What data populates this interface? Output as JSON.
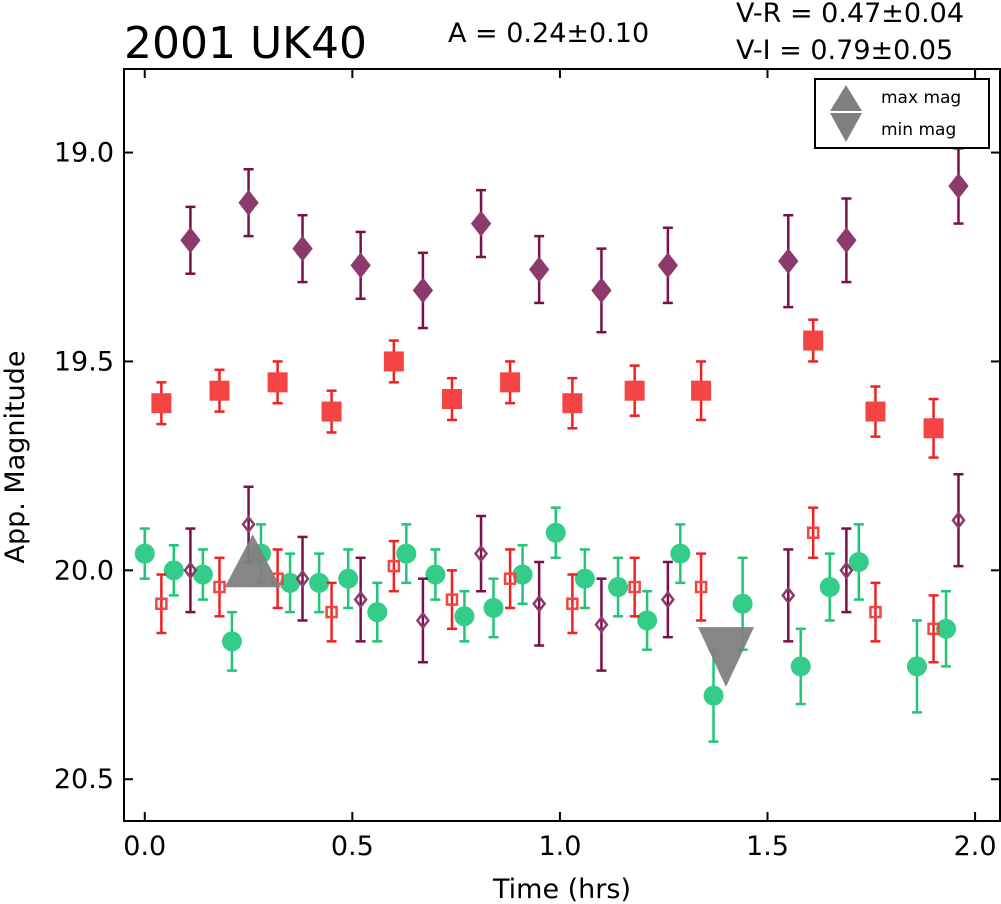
{
  "chart_data": {
    "type": "scatter",
    "title": "2001 UK40",
    "annotations": {
      "amplitude": "A  = 0.24±0.10",
      "v_r": "V-R = 0.47±0.04",
      "v_i": "V-I  = 0.79±0.05"
    },
    "xlabel": "Time (hrs)",
    "ylabel": "App. Magnitude",
    "xlim": [
      -0.05,
      2.06
    ],
    "ylim": [
      20.6,
      18.8
    ],
    "y_inverted": true,
    "xticks": [
      0.0,
      0.5,
      1.0,
      1.5,
      2.0
    ],
    "xtick_labels": [
      "0.0",
      "0.5",
      "1.0",
      "1.5",
      "2.0"
    ],
    "yticks": [
      19.0,
      19.5,
      20.0,
      20.5
    ],
    "ytick_labels": [
      "19.0",
      "19.5",
      "20.0",
      "20.5"
    ],
    "grid": false,
    "legend_position": "top-right",
    "legend": [
      {
        "label": "max mag",
        "marker": "triangle-up",
        "color": "#808080"
      },
      {
        "label": "min mag",
        "marker": "triangle-down",
        "color": "#808080"
      }
    ],
    "series": [
      {
        "marker": "diamond",
        "filled": true,
        "color": "#8b3a6b",
        "errcolor": "#7a1048",
        "points": [
          [
            0.11,
            19.21,
            0.08
          ],
          [
            0.25,
            19.12,
            0.08
          ],
          [
            0.38,
            19.23,
            0.08
          ],
          [
            0.52,
            19.27,
            0.08
          ],
          [
            0.67,
            19.33,
            0.09
          ],
          [
            0.81,
            19.17,
            0.08
          ],
          [
            0.95,
            19.28,
            0.08
          ],
          [
            1.1,
            19.33,
            0.1
          ],
          [
            1.26,
            19.27,
            0.09
          ],
          [
            1.55,
            19.26,
            0.11
          ],
          [
            1.69,
            19.21,
            0.1
          ],
          [
            1.96,
            19.08,
            0.09
          ]
        ]
      },
      {
        "marker": "square",
        "filled": true,
        "color": "#f44444",
        "errcolor": "#ee2222",
        "points": [
          [
            0.04,
            19.6,
            0.05
          ],
          [
            0.18,
            19.57,
            0.05
          ],
          [
            0.32,
            19.55,
            0.05
          ],
          [
            0.45,
            19.62,
            0.05
          ],
          [
            0.6,
            19.5,
            0.05
          ],
          [
            0.74,
            19.59,
            0.05
          ],
          [
            0.88,
            19.55,
            0.05
          ],
          [
            1.03,
            19.6,
            0.06
          ],
          [
            1.18,
            19.57,
            0.06
          ],
          [
            1.34,
            19.57,
            0.07
          ],
          [
            1.61,
            19.45,
            0.05
          ],
          [
            1.76,
            19.62,
            0.06
          ],
          [
            1.9,
            19.66,
            0.07
          ]
        ]
      },
      {
        "marker": "circle",
        "filled": true,
        "color": "#33cc88",
        "errcolor": "#22c577",
        "points": [
          [
            0.0,
            19.96,
            0.06
          ],
          [
            0.07,
            20.0,
            0.06
          ],
          [
            0.14,
            20.01,
            0.06
          ],
          [
            0.21,
            20.17,
            0.07
          ],
          [
            0.28,
            19.96,
            0.07
          ],
          [
            0.35,
            20.03,
            0.07
          ],
          [
            0.42,
            20.03,
            0.07
          ],
          [
            0.49,
            20.02,
            0.07
          ],
          [
            0.56,
            20.1,
            0.07
          ],
          [
            0.63,
            19.96,
            0.07
          ],
          [
            0.7,
            20.01,
            0.06
          ],
          [
            0.77,
            20.11,
            0.06
          ],
          [
            0.84,
            20.09,
            0.07
          ],
          [
            0.91,
            20.01,
            0.07
          ],
          [
            0.99,
            19.91,
            0.06
          ],
          [
            1.06,
            20.02,
            0.07
          ],
          [
            1.14,
            20.04,
            0.07
          ],
          [
            1.21,
            20.12,
            0.07
          ],
          [
            1.29,
            19.96,
            0.07
          ],
          [
            1.37,
            20.3,
            0.11
          ],
          [
            1.44,
            20.08,
            0.11
          ],
          [
            1.58,
            20.23,
            0.09
          ],
          [
            1.65,
            20.04,
            0.08
          ],
          [
            1.72,
            19.98,
            0.09
          ],
          [
            1.86,
            20.23,
            0.11
          ],
          [
            1.93,
            20.14,
            0.09
          ]
        ]
      },
      {
        "marker": "diamond",
        "filled": false,
        "color": "#8b3a6b",
        "errcolor": "#7a1048",
        "points": [
          [
            0.11,
            20.0,
            0.1
          ],
          [
            0.25,
            19.89,
            0.09
          ],
          [
            0.38,
            20.02,
            0.1
          ],
          [
            0.52,
            20.07,
            0.1
          ],
          [
            0.67,
            20.12,
            0.1
          ],
          [
            0.81,
            19.96,
            0.09
          ],
          [
            0.95,
            20.08,
            0.1
          ],
          [
            1.1,
            20.13,
            0.11
          ],
          [
            1.26,
            20.07,
            0.09
          ],
          [
            1.55,
            20.06,
            0.11
          ],
          [
            1.69,
            20.0,
            0.1
          ],
          [
            1.96,
            19.88,
            0.11
          ]
        ]
      },
      {
        "marker": "square",
        "filled": false,
        "color": "#f44444",
        "errcolor": "#ee2222",
        "points": [
          [
            0.04,
            20.08,
            0.07
          ],
          [
            0.18,
            20.04,
            0.07
          ],
          [
            0.32,
            20.02,
            0.07
          ],
          [
            0.45,
            20.1,
            0.07
          ],
          [
            0.6,
            19.99,
            0.06
          ],
          [
            0.74,
            20.07,
            0.07
          ],
          [
            0.88,
            20.02,
            0.07
          ],
          [
            1.03,
            20.08,
            0.07
          ],
          [
            1.18,
            20.04,
            0.07
          ],
          [
            1.34,
            20.04,
            0.08
          ],
          [
            1.61,
            19.91,
            0.06
          ],
          [
            1.76,
            20.1,
            0.07
          ],
          [
            1.9,
            20.14,
            0.08
          ]
        ]
      }
    ],
    "extrema": [
      {
        "label": "max mag",
        "marker": "triangle-up",
        "x": 0.26,
        "y": 19.98,
        "color": "#808080"
      },
      {
        "label": "min mag",
        "marker": "triangle-down",
        "x": 1.4,
        "y": 20.18,
        "color": "#808080"
      }
    ]
  }
}
